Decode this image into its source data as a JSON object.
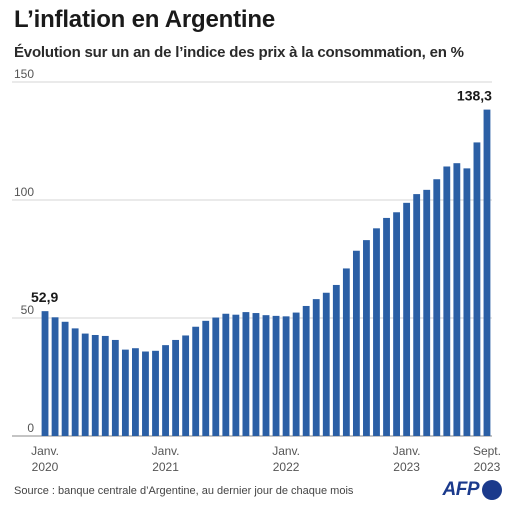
{
  "header": {
    "title": "L’inflation en Argentine",
    "subtitle": "Évolution sur un an de l’indice des prix à la consommation, en %"
  },
  "footer": {
    "source": "Source : banque centrale d’Argentine, au dernier jour de chaque mois",
    "logo_text": "AFP"
  },
  "colors": {
    "bar": "#2b5fa5",
    "grid": "#c8c8c8",
    "axis_text": "#555555",
    "logo": "#1b3a8c"
  },
  "chart_data": {
    "type": "bar",
    "title": "L’inflation en Argentine",
    "subtitle": "Évolution sur un an de l’indice des prix à la consommation, en %",
    "xlabel": "",
    "ylabel": "",
    "ylim": [
      0,
      150
    ],
    "yticks": [
      0,
      50,
      100,
      150
    ],
    "grid": true,
    "categories": [
      "2020-01",
      "2020-02",
      "2020-03",
      "2020-04",
      "2020-05",
      "2020-06",
      "2020-07",
      "2020-08",
      "2020-09",
      "2020-10",
      "2020-11",
      "2020-12",
      "2021-01",
      "2021-02",
      "2021-03",
      "2021-04",
      "2021-05",
      "2021-06",
      "2021-07",
      "2021-08",
      "2021-09",
      "2021-10",
      "2021-11",
      "2021-12",
      "2022-01",
      "2022-02",
      "2022-03",
      "2022-04",
      "2022-05",
      "2022-06",
      "2022-07",
      "2022-08",
      "2022-09",
      "2022-10",
      "2022-11",
      "2022-12",
      "2023-01",
      "2023-02",
      "2023-03",
      "2023-04",
      "2023-05",
      "2023-06",
      "2023-07",
      "2023-08",
      "2023-09"
    ],
    "values": [
      52.9,
      50.3,
      48.4,
      45.6,
      43.4,
      42.8,
      42.4,
      40.7,
      36.6,
      37.2,
      35.8,
      36.1,
      38.5,
      40.7,
      42.6,
      46.3,
      48.8,
      50.2,
      51.8,
      51.4,
      52.5,
      52.1,
      51.2,
      50.9,
      50.7,
      52.3,
      55.1,
      58.0,
      60.7,
      64.0,
      71.0,
      78.5,
      83.0,
      88.0,
      92.4,
      94.8,
      98.8,
      102.5,
      104.3,
      108.8,
      114.2,
      115.6,
      113.4,
      124.4,
      138.3
    ],
    "x_tick_labels": [
      {
        "index": 0,
        "line1": "Janv.",
        "line2": "2020"
      },
      {
        "index": 12,
        "line1": "Janv.",
        "line2": "2021"
      },
      {
        "index": 24,
        "line1": "Janv.",
        "line2": "2022"
      },
      {
        "index": 36,
        "line1": "Janv.",
        "line2": "2023"
      },
      {
        "index": 44,
        "line1": "Sept.",
        "line2": "2023"
      }
    ],
    "annotations": [
      {
        "index": 0,
        "text": "52,9"
      },
      {
        "index": 44,
        "text": "138,3"
      }
    ]
  }
}
